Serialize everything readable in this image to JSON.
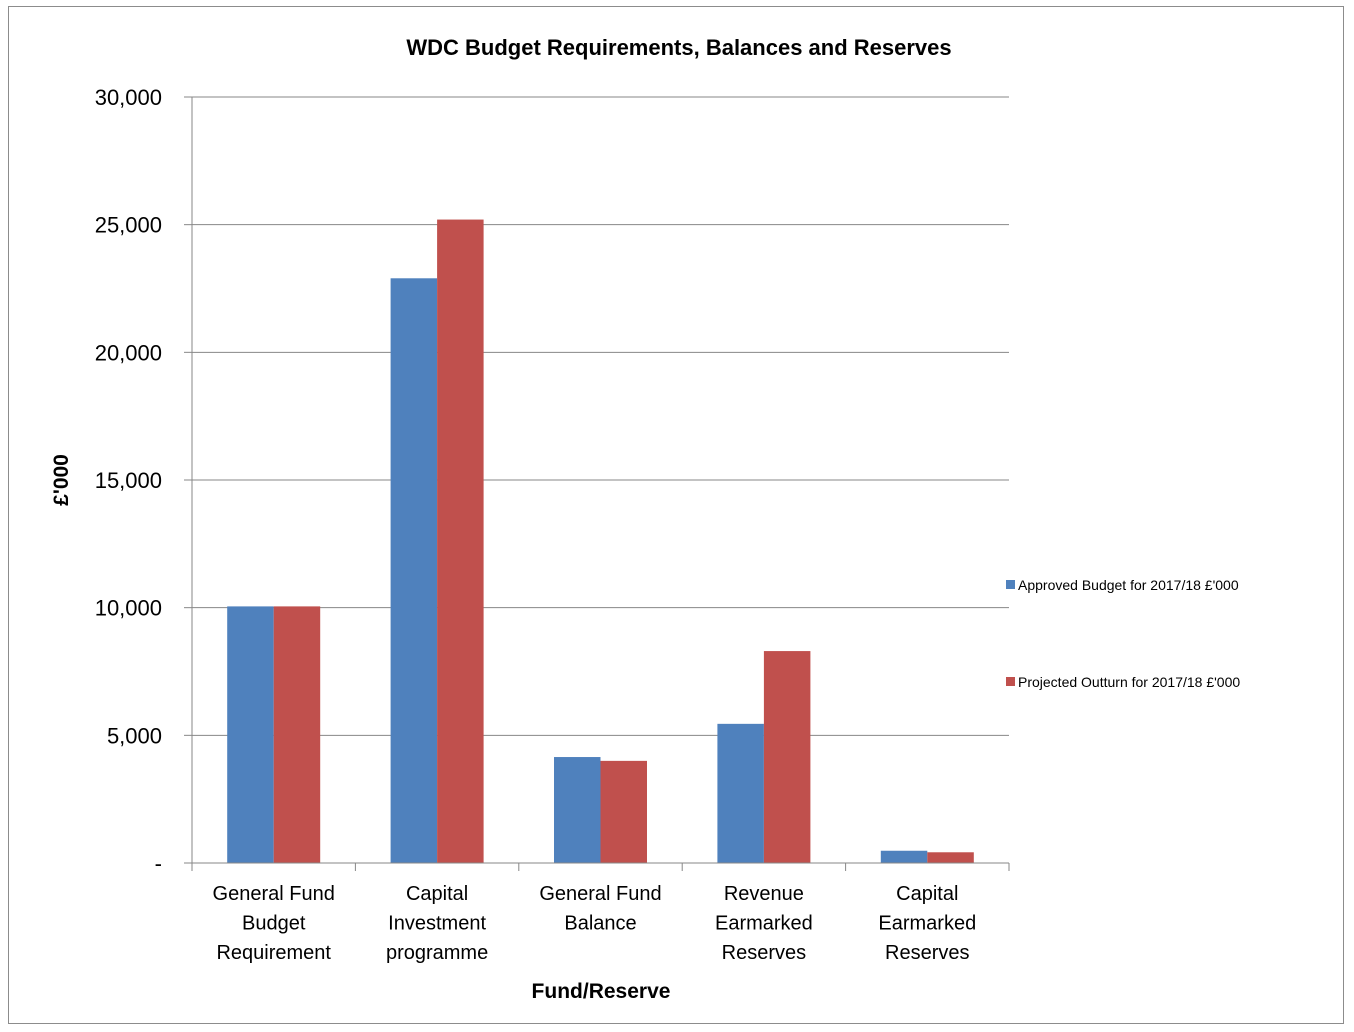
{
  "chart_data": {
    "type": "bar",
    "title": "WDC Budget Requirements, Balances and Reserves",
    "xlabel": "Fund/Reserve",
    "ylabel": "£'000",
    "ylim": [
      0,
      30000
    ],
    "yticks": [
      0,
      5000,
      10000,
      15000,
      20000,
      25000,
      30000
    ],
    "ytick_labels": [
      "-",
      "5,000",
      "10,000",
      "15,000",
      "20,000",
      "25,000",
      "30,000"
    ],
    "grid": true,
    "legend_position": "right",
    "categories": [
      [
        "General Fund",
        "Budget",
        "Requirement"
      ],
      [
        "Capital",
        "Investment",
        "programme"
      ],
      [
        "General Fund",
        "Balance"
      ],
      [
        "Revenue",
        "Earmarked",
        "Reserves"
      ],
      [
        "Capital",
        "Earmarked",
        "Reserves"
      ]
    ],
    "series": [
      {
        "name": "Approved Budget for 2017/18  £'000",
        "color": "#4f81bd",
        "values": [
          10050,
          22900,
          4150,
          5450,
          480
        ]
      },
      {
        "name": "Projected Outturn for 2017/18  £'000",
        "color": "#c0504d",
        "values": [
          10050,
          25200,
          4000,
          8300,
          420
        ]
      }
    ]
  }
}
